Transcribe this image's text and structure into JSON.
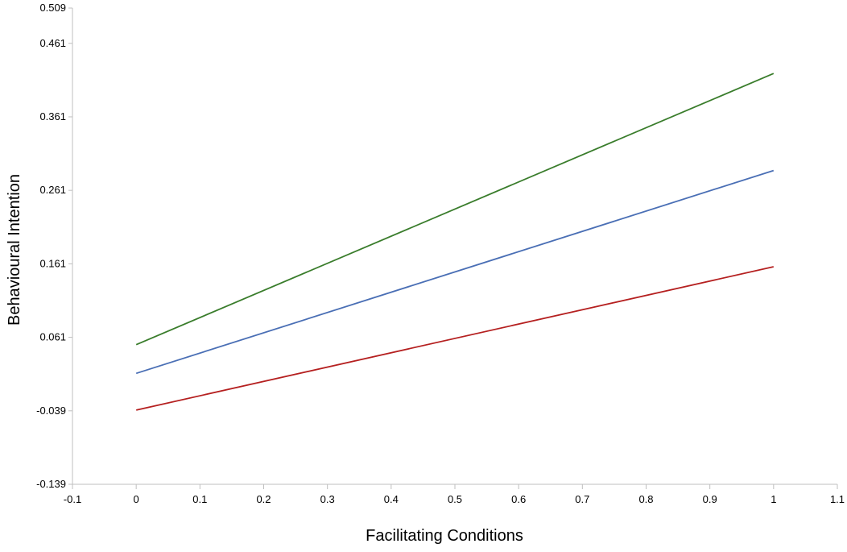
{
  "chart_data": {
    "type": "line",
    "title": "",
    "xlabel": "Facilitating Conditions",
    "ylabel": "Behavioural Intention",
    "xlim": [
      -0.1,
      1.1
    ],
    "ylim": [
      -0.139,
      0.509
    ],
    "x_ticks": [
      "-0.1",
      "0",
      "0.1",
      "0.2",
      "0.3",
      "0.4",
      "0.5",
      "0.6",
      "0.7",
      "0.8",
      "0.9",
      "1",
      "1.1"
    ],
    "y_ticks": [
      "0.509",
      "0.461",
      "0.361",
      "0.261",
      "0.161",
      "0.061",
      "-0.039",
      "-0.139"
    ],
    "grid": false,
    "legend": "none",
    "series": [
      {
        "color": "#3a7d2c",
        "x": [
          0,
          1
        ],
        "y": [
          0.051,
          0.42
        ]
      },
      {
        "color": "#4a6fb5",
        "x": [
          0,
          1
        ],
        "y": [
          0.012,
          0.288
        ]
      },
      {
        "color": "#b52020",
        "x": [
          0,
          1
        ],
        "y": [
          -0.038,
          0.157
        ]
      }
    ]
  }
}
